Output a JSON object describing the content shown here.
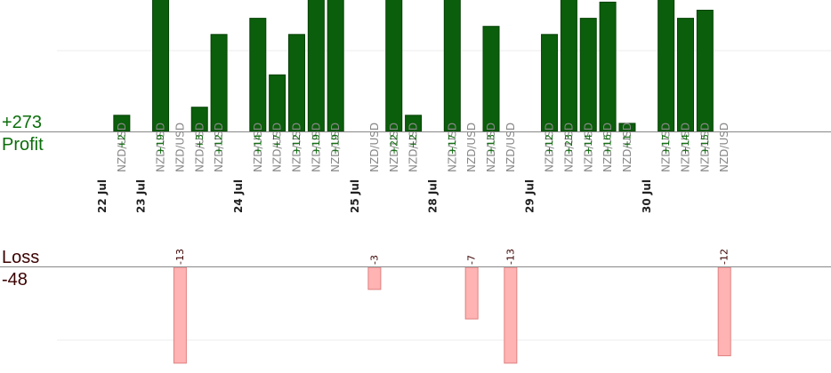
{
  "chart_data": {
    "type": "bar",
    "profit_total": "+273",
    "profit_label": "Profit",
    "loss_label": "Loss",
    "loss_total": "-48",
    "colors": {
      "profit": "#0b5e0b",
      "loss": "#ffb3b3",
      "profit_text": "#0b6e0b",
      "loss_text": "#3a0000"
    },
    "dates": [
      "22 Jul",
      "23 Jul",
      "24 Jul",
      "25 Jul",
      "28 Jul",
      "29 Jul",
      "30 Jul"
    ],
    "slots": [
      {
        "type": "date",
        "label": "22 Jul"
      },
      {
        "type": "trade",
        "label": "NZD/USD",
        "value": 2
      },
      {
        "type": "date",
        "label": "23 Jul"
      },
      {
        "type": "trade",
        "label": "NZD/USD",
        "value": 19
      },
      {
        "type": "trade",
        "label": "NZD/USD",
        "value": -13
      },
      {
        "type": "trade",
        "label": "NZD/USD",
        "value": 3
      },
      {
        "type": "trade",
        "label": "NZD/USD",
        "value": 12
      },
      {
        "type": "date",
        "label": "24 Jul"
      },
      {
        "type": "trade",
        "label": "NZD/USD",
        "value": 14
      },
      {
        "type": "trade",
        "label": "NZD/USD",
        "value": 7
      },
      {
        "type": "trade",
        "label": "NZD/USD",
        "value": 12
      },
      {
        "type": "trade",
        "label": "NZD/USD",
        "value": 19
      },
      {
        "type": "trade",
        "label": "NZD/USD",
        "value": 19
      },
      {
        "type": "date",
        "label": "25 Jul"
      },
      {
        "type": "trade",
        "label": "NZD/USD",
        "value": -3
      },
      {
        "type": "trade",
        "label": "NZD/USD",
        "value": 22
      },
      {
        "type": "trade",
        "label": "NZD/USD",
        "value": 2
      },
      {
        "type": "date",
        "label": "28 Jul"
      },
      {
        "type": "trade",
        "label": "NZD/USD",
        "value": 17
      },
      {
        "type": "trade",
        "label": "NZD/USD",
        "value": -7
      },
      {
        "type": "trade",
        "label": "NZD/USD",
        "value": 13
      },
      {
        "type": "trade",
        "label": "NZD/USD",
        "value": -13
      },
      {
        "type": "date",
        "label": "29 Jul"
      },
      {
        "type": "trade",
        "label": "NZD/USD",
        "value": 12
      },
      {
        "type": "trade",
        "label": "NZD/USD",
        "value": 23
      },
      {
        "type": "trade",
        "label": "NZD/USD",
        "value": 14
      },
      {
        "type": "trade",
        "label": "NZD/USD",
        "value": 16
      },
      {
        "type": "trade",
        "label": "NZD/USD",
        "value": 1
      },
      {
        "type": "date",
        "label": "30 Jul"
      },
      {
        "type": "trade",
        "label": "NZD/USD",
        "value": 17
      },
      {
        "type": "trade",
        "label": "NZD/USD",
        "value": 14
      },
      {
        "type": "trade",
        "label": "NZD/USD",
        "value": 15
      },
      {
        "type": "trade",
        "label": "NZD/USD",
        "value": -12
      }
    ]
  }
}
